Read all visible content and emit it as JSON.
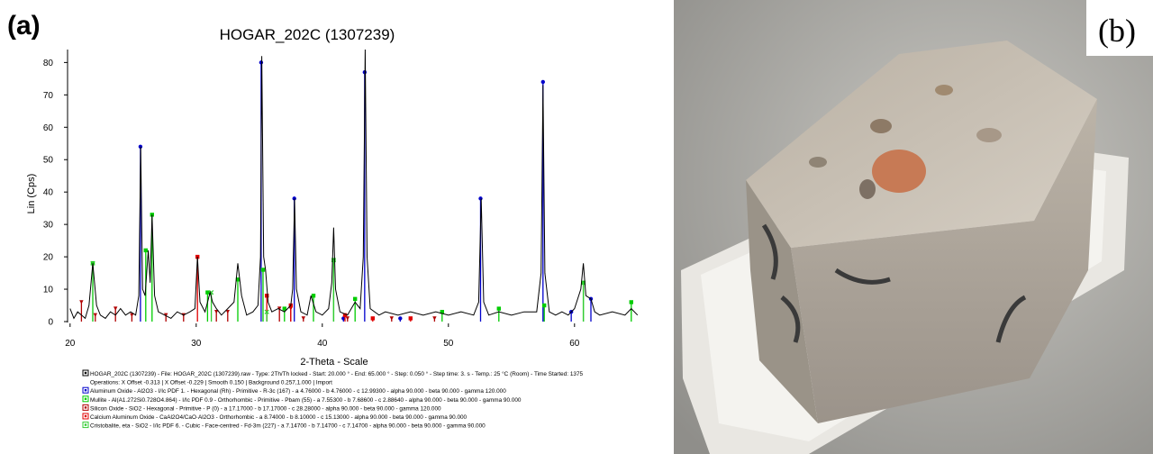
{
  "chart_data": {
    "type": "line",
    "panel_label": "(a)",
    "title": "HOGAR_202C (1307239)",
    "x_label": "2-Theta - Scale",
    "y_label": "Lin (Cps)",
    "xlim": [
      19.8,
      65.3
    ],
    "ylim": [
      0,
      84
    ],
    "xticks": [
      20,
      30,
      40,
      50,
      60
    ],
    "yticks": [
      0,
      10,
      20,
      30,
      40,
      50,
      60,
      70,
      80
    ],
    "operations": "Operations: X Offset -0.313 | X Offset -0.229 | Smooth 0.150 | Background 0.257,1.000 | Import",
    "series": [
      {
        "name": "HOGAR_202C (1307239) - File: HOGAR_202C (1307239).raw - Type: 2Th/Th locked - Start: 20.000 ° - End: 65.000 ° - Step: 0.050 ° - Step time: 3. s - Temp.: 25 °C (Room) - Time Started: 1375",
        "color": "#000000",
        "style": "line",
        "x": [
          20,
          20.3,
          20.6,
          20.9,
          21.2,
          21.5,
          21.8,
          22.1,
          22.4,
          22.8,
          23.2,
          23.6,
          24.0,
          24.4,
          24.8,
          25.2,
          25.45,
          25.6,
          25.75,
          25.95,
          26.2,
          26.35,
          26.5,
          26.7,
          27.0,
          27.5,
          28.0,
          28.5,
          29.0,
          29.5,
          29.9,
          30.1,
          30.3,
          30.7,
          31.1,
          31.3,
          31.6,
          32.0,
          32.5,
          33.0,
          33.3,
          33.6,
          34.0,
          34.5,
          34.9,
          35.1,
          35.2,
          35.35,
          35.5,
          35.7,
          36.0,
          36.5,
          37.0,
          37.5,
          37.65,
          37.8,
          37.95,
          38.3,
          38.8,
          39.1,
          39.5,
          40.0,
          40.5,
          40.75,
          40.9,
          41.05,
          41.4,
          42.0,
          42.6,
          43.0,
          43.25,
          43.4,
          43.55,
          43.8,
          44.5,
          45.0,
          46.0,
          47.0,
          48.0,
          49.0,
          50.0,
          51.0,
          52.0,
          52.4,
          52.6,
          52.8,
          53.2,
          54.0,
          55.0,
          56.0,
          57.0,
          57.35,
          57.5,
          57.65,
          58.0,
          58.5,
          59.0,
          59.5,
          60.0,
          60.5,
          60.7,
          60.9,
          61.3,
          61.6,
          62.0,
          63.0,
          64.0,
          64.5,
          65.0
        ],
        "values": [
          4,
          1,
          3,
          2,
          1,
          5,
          18,
          5,
          2,
          1,
          3,
          2,
          4,
          2,
          3,
          2,
          8,
          54,
          10,
          8,
          22,
          12,
          33,
          8,
          3,
          2,
          1,
          3,
          2,
          3,
          4,
          20,
          6,
          3,
          9,
          6,
          4,
          2,
          4,
          6,
          18,
          8,
          2,
          3,
          5,
          20,
          82,
          20,
          16,
          6,
          3,
          4,
          3,
          5,
          10,
          38,
          10,
          3,
          2,
          8,
          3,
          2,
          4,
          12,
          29,
          10,
          3,
          2,
          6,
          4,
          20,
          84,
          20,
          4,
          2,
          3,
          2,
          3,
          2,
          3,
          2,
          3,
          2,
          6,
          38,
          6,
          2,
          3,
          2,
          3,
          3,
          15,
          73,
          15,
          3,
          2,
          3,
          2,
          4,
          10,
          18,
          8,
          7,
          3,
          2,
          3,
          2,
          4,
          2
        ]
      },
      {
        "name": "Aluminum Oxide - Al2O3 - I/Ic PDF 1. - Hexagonal (Rh) - Primitive - R-3c (167) - a 4.76000 - b 4.76000 - c 12.99300 - alpha 90.000 - beta 90.000 - gamma 120.000",
        "color": "#0000cc",
        "style": "stick",
        "marker": "circle",
        "x": [
          25.58,
          35.15,
          37.78,
          41.68,
          43.36,
          46.18,
          52.55,
          57.5,
          59.74,
          61.3
        ],
        "values": [
          54,
          80,
          38,
          1,
          77,
          1,
          38,
          74,
          3,
          7
        ]
      },
      {
        "name": "Mullite - Al(A1.272Si0.728O4.864) - I/Ic PDF 0.9 - Orthorhombic - Primitive - Pbam (55) - a 7.55300 - b 7.68600 - c 2.88640 - alpha 90.000 - beta 90.000 - gamma 90.000",
        "color": "#00cc00",
        "style": "stick",
        "marker": "square",
        "x": [
          21.8,
          26.0,
          26.5,
          30.9,
          33.3,
          35.3,
          37.0,
          39.3,
          40.9,
          42.6,
          49.5,
          54.0,
          57.6,
          60.7,
          64.5
        ],
        "values": [
          18,
          22,
          33,
          9,
          13,
          16,
          4,
          8,
          19,
          7,
          3,
          4,
          5,
          12,
          6
        ]
      },
      {
        "name": "Silicon Oxide - SiO2 - Hexagonal - Primitive - P (0) - a 17.17000 - b 17.17000 - c 28.28000 - alpha 90.000 - beta 90.000 - gamma 120.000",
        "color": "#b00000",
        "style": "stick",
        "marker": "triangle",
        "x": [
          20.9,
          22.0,
          23.6,
          24.9,
          27.6,
          29.0,
          31.6,
          32.5,
          36.6,
          37.5,
          38.5,
          42.0,
          45.5,
          48.9
        ],
        "values": [
          6,
          2,
          4,
          2,
          2,
          2,
          3,
          3,
          4,
          4,
          1,
          1,
          1,
          1
        ]
      },
      {
        "name": "Calcium Aluminum Oxide - CaAl2O4/CaO·Al2O3 - Orthorhombic - a 8.74000 - b 8.10000 - c 15.13000 - alpha 90.000 - beta 90.000 - gamma 90.000",
        "color": "#e00000",
        "style": "stick",
        "marker": "square",
        "x": [
          30.1,
          35.6,
          37.5,
          41.8,
          44.0,
          47.0
        ],
        "values": [
          20,
          8,
          5,
          2,
          1,
          1
        ]
      },
      {
        "name": "Cristobalite, eta - SiO2 - I/Ic PDF 6. - Cubic - Face-centred - Fd-3m (227) - a 7.14700 - b 7.14700 - c 7.14700 - alpha 90.000 - beta 90.000 - gamma 90.000",
        "color": "#33cc33",
        "style": "stick",
        "marker": "x",
        "x": [
          21.8,
          31.2,
          35.6,
          40.9,
          60.7
        ],
        "values": [
          18,
          9,
          3,
          19,
          12
        ]
      }
    ]
  },
  "photo": {
    "panel_label": "(b)"
  }
}
